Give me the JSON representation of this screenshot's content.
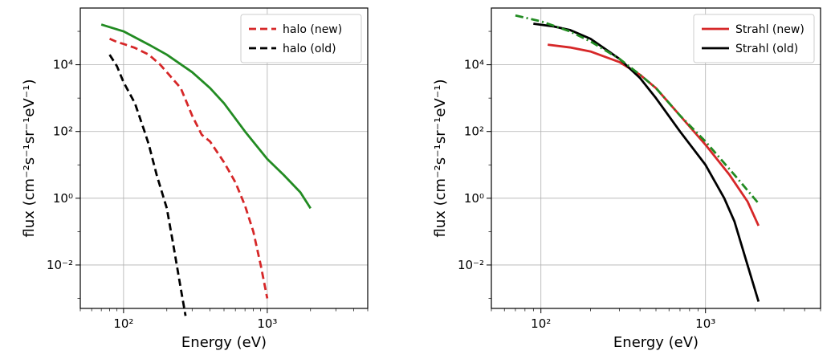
{
  "chart_data": [
    {
      "type": "line",
      "xscale": "log",
      "yscale": "log",
      "xlabel": "Energy (eV)",
      "ylabel": "flux (cm⁻²s⁻¹sr⁻¹eV⁻¹)",
      "xlim": [
        50,
        5000
      ],
      "ylim": [
        0.0005,
        500000
      ],
      "grid": true,
      "legend": "top-right",
      "x_ticks": [
        {
          "value": 100,
          "label": "10²"
        },
        {
          "value": 1000,
          "label": "10³"
        }
      ],
      "y_ticks": [
        {
          "value": 0.01,
          "label": "10⁻²"
        },
        {
          "value": 1,
          "label": "10⁰"
        },
        {
          "value": 100,
          "label": "10²"
        },
        {
          "value": 10000,
          "label": "10⁴"
        }
      ],
      "series": [
        {
          "name": "halo (new)",
          "color": "#d62728",
          "style": "dashed",
          "legend": true,
          "points": [
            [
              80,
              60000
            ],
            [
              90,
              48000
            ],
            [
              100,
              42000
            ],
            [
              120,
              32000
            ],
            [
              150,
              20000
            ],
            [
              180,
              10000
            ],
            [
              200,
              6000
            ],
            [
              250,
              2000
            ],
            [
              300,
              300
            ],
            [
              350,
              80
            ],
            [
              400,
              50
            ],
            [
              500,
              12
            ],
            [
              600,
              3
            ],
            [
              700,
              0.6
            ],
            [
              800,
              0.1
            ],
            [
              900,
              0.01
            ],
            [
              1000,
              0.001
            ]
          ]
        },
        {
          "name": "halo (old)",
          "color": "#000000",
          "style": "dashed",
          "legend": true,
          "points": [
            [
              80,
              20000
            ],
            [
              90,
              9000
            ],
            [
              100,
              3000
            ],
            [
              120,
              700
            ],
            [
              140,
              100
            ],
            [
              150,
              40
            ],
            [
              170,
              5
            ],
            [
              200,
              0.5
            ],
            [
              220,
              0.05
            ],
            [
              250,
              0.002
            ],
            [
              270,
              0.0003
            ]
          ]
        },
        {
          "color": "#228b22",
          "style": "solid",
          "legend": false,
          "points": [
            [
              70,
              160000
            ],
            [
              100,
              100000
            ],
            [
              150,
              40000
            ],
            [
              200,
              20000
            ],
            [
              300,
              6000
            ],
            [
              400,
              2000
            ],
            [
              500,
              700
            ],
            [
              700,
              100
            ],
            [
              1000,
              15
            ],
            [
              1300,
              5
            ],
            [
              1700,
              1.5
            ],
            [
              2000,
              0.5
            ]
          ]
        }
      ]
    },
    {
      "type": "line",
      "xscale": "log",
      "yscale": "log",
      "xlabel": "Energy (eV)",
      "ylabel": "flux (cm⁻²s⁻¹sr⁻¹eV⁻¹)",
      "xlim": [
        50,
        5000
      ],
      "ylim": [
        0.0005,
        500000
      ],
      "grid": true,
      "legend": "top-right",
      "x_ticks": [
        {
          "value": 100,
          "label": "10²"
        },
        {
          "value": 1000,
          "label": "10³"
        }
      ],
      "y_ticks": [
        {
          "value": 0.01,
          "label": "10⁻²"
        },
        {
          "value": 1,
          "label": "10⁰"
        },
        {
          "value": 100,
          "label": "10²"
        },
        {
          "value": 10000,
          "label": "10⁴"
        }
      ],
      "series": [
        {
          "name": "Strahl (new)",
          "color": "#d62728",
          "style": "solid",
          "legend": true,
          "points": [
            [
              110,
              40000
            ],
            [
              150,
              33000
            ],
            [
              200,
              25000
            ],
            [
              300,
              12000
            ],
            [
              400,
              5000
            ],
            [
              500,
              2000
            ],
            [
              700,
              300
            ],
            [
              1000,
              40
            ],
            [
              1400,
              5
            ],
            [
              1800,
              0.8
            ],
            [
              2100,
              0.15
            ]
          ]
        },
        {
          "name": "Strahl (old)",
          "color": "#000000",
          "style": "solid",
          "legend": true,
          "points": [
            [
              90,
              170000
            ],
            [
              120,
              140000
            ],
            [
              150,
              110000
            ],
            [
              200,
              60000
            ],
            [
              300,
              15000
            ],
            [
              400,
              4000
            ],
            [
              500,
              1000
            ],
            [
              700,
              100
            ],
            [
              1000,
              10
            ],
            [
              1300,
              1
            ],
            [
              1500,
              0.2
            ],
            [
              1800,
              0.01
            ],
            [
              2100,
              0.0008
            ]
          ]
        },
        {
          "color": "#228b22",
          "style": "dashdot",
          "legend": false,
          "points": [
            [
              70,
              300000
            ],
            [
              100,
              200000
            ],
            [
              150,
              100000
            ],
            [
              200,
              50000
            ],
            [
              300,
              15000
            ],
            [
              400,
              5000
            ],
            [
              500,
              2000
            ],
            [
              700,
              300
            ],
            [
              1000,
              50
            ],
            [
              1500,
              5
            ],
            [
              2100,
              0.7
            ]
          ]
        }
      ]
    }
  ]
}
